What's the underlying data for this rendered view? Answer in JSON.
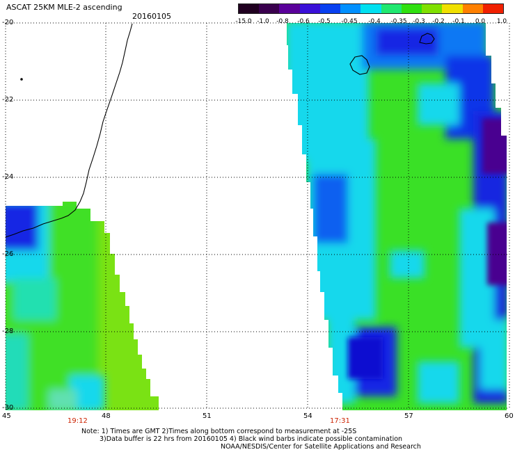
{
  "header": {
    "title": "ASCAT 25KM MLE-2 ascending",
    "date": "20160105"
  },
  "colorbar": {
    "labels": [
      "-15.0",
      "-1.0",
      "-0.8",
      "-0.6",
      "-0.5",
      "-0.45",
      "-0.4",
      "-0.35",
      "-0.3",
      "-0.2",
      "-0.1",
      "0.0",
      "1.0"
    ],
    "colors": [
      "#200020",
      "#3a004e",
      "#5a009a",
      "#3a10d8",
      "#0840f0",
      "#0090ff",
      "#00e0f0",
      "#20e870",
      "#30e010",
      "#80e000",
      "#f0e000",
      "#ff8000",
      "#f02000"
    ]
  },
  "axes": {
    "y_ticks": [
      "-20",
      "-22",
      "-24",
      "-26",
      "-28",
      "-30"
    ],
    "x_ticks": [
      "45",
      "48",
      "51",
      "54",
      "57",
      "60"
    ],
    "x_range": [
      45,
      60
    ],
    "y_range": [
      -20,
      -30
    ],
    "grid": "dotted"
  },
  "passes": {
    "times": [
      "19:12",
      "17:31"
    ]
  },
  "notes": {
    "line1": "Note: 1) Times are GMT 2)Times along bottom correspond to measurement at -25S",
    "line2": "3)Data buffer is 22 hrs from 20160105 4) Black wind barbs indicate possible contamination",
    "line3": "NOAA/NESDIS/Center for Satellite Applications and Research"
  },
  "colors": {
    "high_mle_blue": "#1020e0",
    "mid_cyan": "#10d8f0",
    "low_green": "#30e010",
    "yellow_green": "#90e010",
    "purple": "#4a0090",
    "coastline": "#000000"
  }
}
